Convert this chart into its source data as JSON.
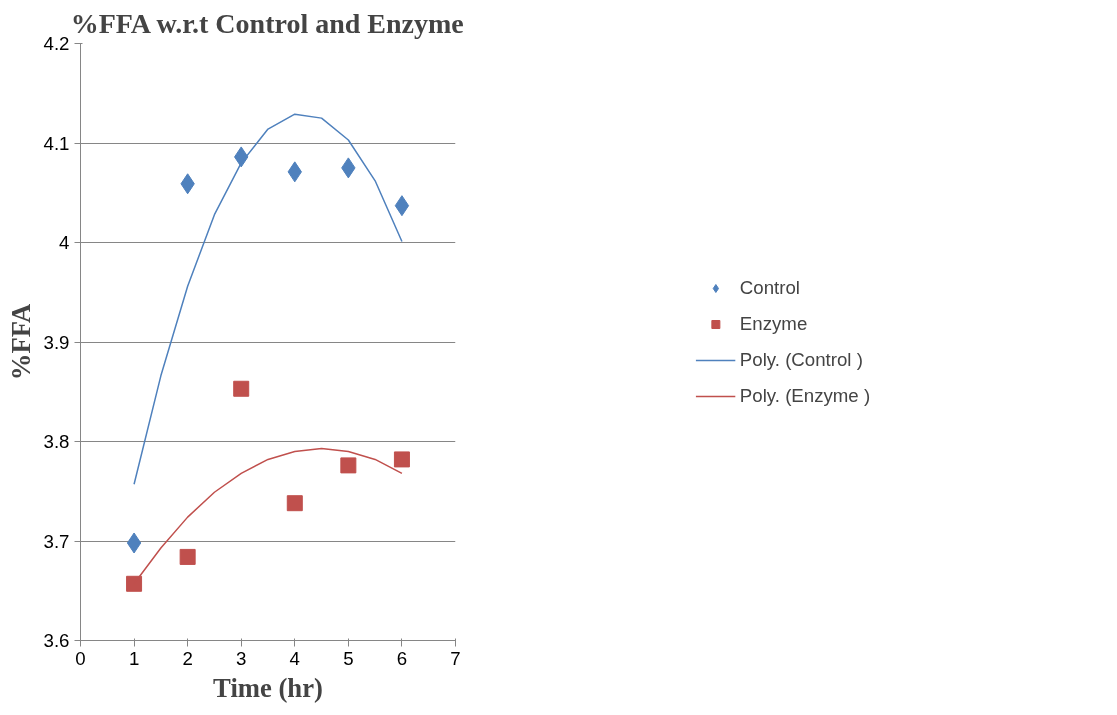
{
  "chart_data": {
    "type": "scatter",
    "title": "%FFA w.r.t Control and Enzyme",
    "xlabel": "Time (hr)",
    "ylabel": "%FFA",
    "x": [
      1,
      2,
      3,
      4,
      5,
      6
    ],
    "series": [
      {
        "name": "Control",
        "color": "#4f81bd",
        "marker": "diamond",
        "values": [
          3.698,
          4.059,
          4.086,
          4.071,
          4.075,
          4.037
        ]
      },
      {
        "name": "Enzyme",
        "color": "#c0504d",
        "marker": "square",
        "values": [
          3.657,
          3.684,
          3.853,
          3.738,
          3.776,
          3.782
        ]
      },
      {
        "name": "Poly. (Control )",
        "type": "line",
        "color": "#4f81bd",
        "x": [
          1,
          1.5,
          2,
          2.5,
          3,
          3.5,
          4,
          4.5,
          5,
          5.5,
          6
        ],
        "values": [
          3.757,
          3.866,
          3.956,
          4.028,
          4.08,
          4.114,
          4.129,
          4.125,
          4.103,
          4.062,
          4.001
        ]
      },
      {
        "name": "Poly. (Enzyme )",
        "type": "line",
        "color": "#c0504d",
        "x": [
          1,
          1.5,
          2,
          2.5,
          3,
          3.5,
          4,
          4.5,
          5,
          5.5,
          6
        ],
        "values": [
          3.657,
          3.693,
          3.724,
          3.749,
          3.768,
          3.782,
          3.79,
          3.793,
          3.79,
          3.782,
          3.768
        ]
      }
    ],
    "xlim": [
      0,
      7
    ],
    "xticks": [
      0,
      1,
      2,
      3,
      4,
      5,
      6,
      7
    ],
    "ylim": [
      3.6,
      4.2
    ],
    "yticks": [
      3.6,
      3.7,
      3.8,
      3.9,
      4,
      4.1,
      4.2
    ],
    "grid": "y",
    "legend": "right"
  }
}
